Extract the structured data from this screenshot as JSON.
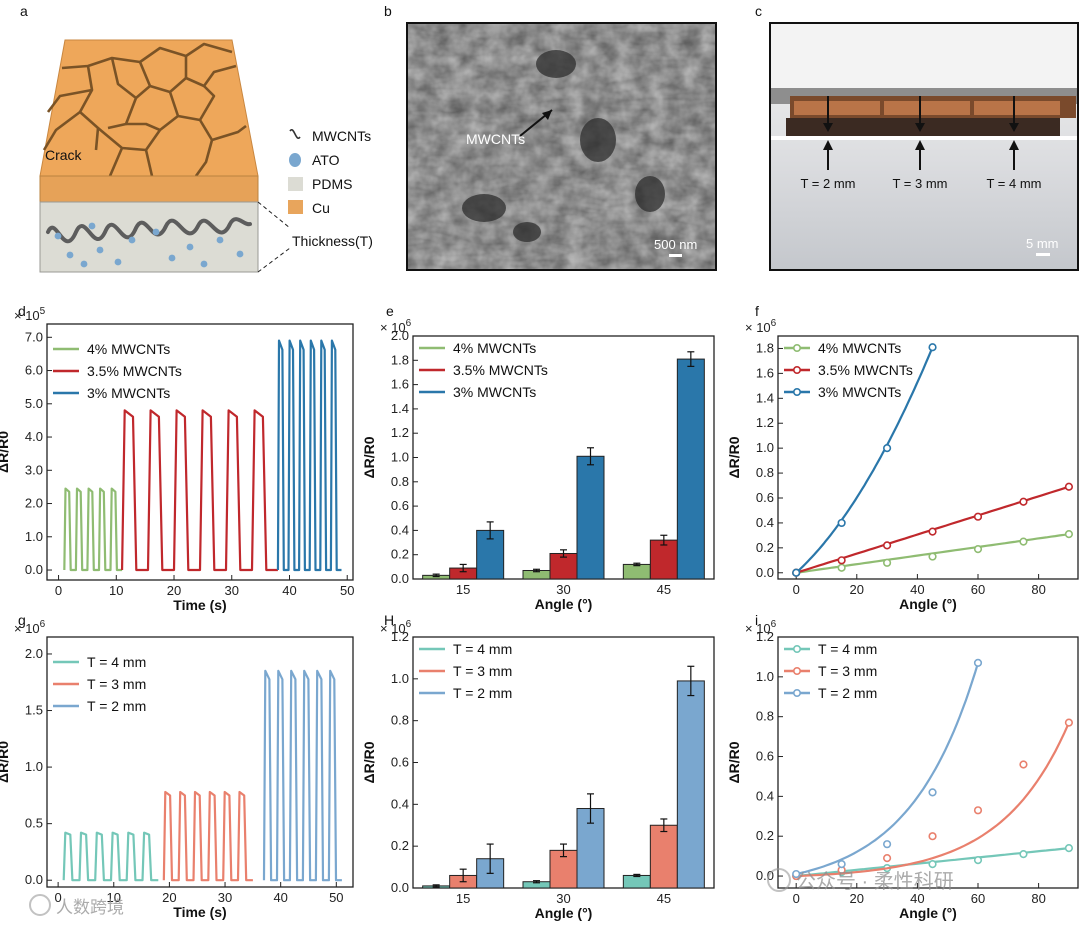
{
  "figure": {
    "panel_letters": {
      "a": "a",
      "b": "b",
      "c": "c",
      "d": "d",
      "e": "e",
      "f": "f",
      "g": "g",
      "H": "H",
      "i": "i"
    },
    "schematic": {
      "crack_label": "Crack",
      "legend": [
        "MWCNTs",
        "ATO",
        "PDMS",
        "Cu"
      ],
      "thickness_label": "Thickness(T)",
      "colors": {
        "cu": "#e8a55c",
        "pdms": "#dcdcd4",
        "ato": "#7aa7cf",
        "crack": "#6b4a1e"
      }
    },
    "sem_image": {
      "annotation": "MWCNTs",
      "scale_bar": "500 nm"
    },
    "photo": {
      "labels": [
        "T = 2 mm",
        "T = 3 mm",
        "T = 4 mm"
      ],
      "scale_bar": "5 mm"
    },
    "watermarks": [
      "公众号 · 柔性科研",
      "人数跨境"
    ]
  },
  "chart_data": [
    {
      "id": "d",
      "type": "line",
      "multiplier": "× 10^5",
      "xlabel": "Time (s)",
      "ylabel": "ΔR/R0",
      "xlim": [
        -2,
        51
      ],
      "ylim": [
        -0.3,
        7.4
      ],
      "xticks": [
        0,
        10,
        20,
        30,
        40,
        50
      ],
      "yticks": [
        "0.0",
        "1.0",
        "2.0",
        "3.0",
        "4.0",
        "5.0",
        "6.0",
        "7.0"
      ],
      "series": [
        {
          "name": "4%    MWCNTs",
          "color": "#8fbc72",
          "t_start": 1,
          "t_end": 11,
          "peak": 2.45,
          "cycles": 5
        },
        {
          "name": "3.5% MWCNTs",
          "color": "#c0282c",
          "t_start": 11,
          "t_end": 38,
          "peak": 4.8,
          "cycles": 6
        },
        {
          "name": "3%    MWCNTs",
          "color": "#2a77aa",
          "t_start": 38,
          "t_end": 49,
          "peak": 6.9,
          "cycles": 6
        }
      ]
    },
    {
      "id": "e",
      "type": "bar",
      "multiplier": "× 10^6",
      "xlabel": "Angle (°)",
      "ylabel": "ΔR/R0",
      "categories": [
        "15",
        "30",
        "45"
      ],
      "ylim": [
        0,
        2.0
      ],
      "yticks": [
        "0.0",
        "0.2",
        "0.4",
        "0.6",
        "0.8",
        "1.0",
        "1.2",
        "1.4",
        "1.6",
        "1.8",
        "2.0"
      ],
      "series": [
        {
          "name": "4%    MWCNTs",
          "color": "#8fbc72",
          "values": [
            0.03,
            0.07,
            0.12
          ],
          "errors": [
            0.01,
            0.01,
            0.01
          ]
        },
        {
          "name": "3.5% MWCNTs",
          "color": "#c0282c",
          "values": [
            0.09,
            0.21,
            0.32
          ],
          "errors": [
            0.03,
            0.03,
            0.04
          ]
        },
        {
          "name": "3%    MWCNTs",
          "color": "#2a77aa",
          "values": [
            0.4,
            1.01,
            1.81
          ],
          "errors": [
            0.07,
            0.07,
            0.06
          ]
        }
      ]
    },
    {
      "id": "f",
      "type": "scatter",
      "multiplier": "× 10^6",
      "xlabel": "Angle (°)",
      "ylabel": "ΔR/R0",
      "xlim": [
        -6,
        93
      ],
      "ylim": [
        -0.05,
        1.9
      ],
      "xticks": [
        0,
        20,
        40,
        60,
        80
      ],
      "yticks": [
        "0.0",
        "0.2",
        "0.4",
        "0.6",
        "0.8",
        "1.0",
        "1.2",
        "1.4",
        "1.6",
        "1.8"
      ],
      "series": [
        {
          "name": "4%    MWCNTs",
          "color": "#8fbc72",
          "x": [
            0,
            15,
            30,
            45,
            60,
            75,
            90
          ],
          "y": [
            0,
            0.04,
            0.08,
            0.13,
            0.19,
            0.25,
            0.31
          ]
        },
        {
          "name": "3.5% MWCNTs",
          "color": "#c0282c",
          "x": [
            0,
            15,
            30,
            45,
            60,
            75,
            90
          ],
          "y": [
            0,
            0.1,
            0.22,
            0.33,
            0.45,
            0.57,
            0.69
          ]
        },
        {
          "name": "3%    MWCNTs",
          "color": "#2a77aa",
          "x": [
            0,
            15,
            30,
            45
          ],
          "y": [
            0,
            0.4,
            1.0,
            1.81
          ]
        }
      ]
    },
    {
      "id": "g",
      "type": "line",
      "multiplier": "× 10^6",
      "xlabel": "Time (s)",
      "ylabel": "ΔR/R0",
      "xlim": [
        -2,
        53
      ],
      "ylim": [
        -0.06,
        2.15
      ],
      "xticks": [
        0,
        10,
        20,
        30,
        40,
        50
      ],
      "yticks": [
        "0.0",
        "0.5",
        "1.0",
        "1.5",
        "2.0"
      ],
      "series": [
        {
          "name": "T = 4 mm",
          "color": "#74c7b8",
          "t_start": 1,
          "t_end": 18,
          "peak": 0.42,
          "cycles": 6
        },
        {
          "name": "T = 3 mm",
          "color": "#e9806d",
          "t_start": 19,
          "t_end": 35,
          "peak": 0.78,
          "cycles": 6
        },
        {
          "name": "T = 2 mm",
          "color": "#7aa7cf",
          "t_start": 37,
          "t_end": 51,
          "peak": 1.85,
          "cycles": 6
        }
      ]
    },
    {
      "id": "H",
      "type": "bar",
      "multiplier": "× 10^6",
      "xlabel": "Angle (°)",
      "ylabel": "ΔR/R0",
      "categories": [
        "15",
        "30",
        "45"
      ],
      "ylim": [
        0,
        1.2
      ],
      "yticks": [
        "0.0",
        "0.2",
        "0.4",
        "0.6",
        "0.8",
        "1.0",
        "1.2"
      ],
      "series": [
        {
          "name": "T = 4 mm",
          "color": "#74c7b8",
          "values": [
            0.01,
            0.03,
            0.06
          ],
          "errors": [
            0.005,
            0.005,
            0.005
          ]
        },
        {
          "name": "T = 3 mm",
          "color": "#e9806d",
          "values": [
            0.06,
            0.18,
            0.3
          ],
          "errors": [
            0.03,
            0.03,
            0.03
          ]
        },
        {
          "name": "T = 2 mm",
          "color": "#7aa7cf",
          "values": [
            0.14,
            0.38,
            0.99
          ],
          "errors": [
            0.07,
            0.07,
            0.07
          ]
        }
      ]
    },
    {
      "id": "i",
      "type": "scatter",
      "multiplier": "× 10^6",
      "xlabel": "Angle (°)",
      "ylabel": "ΔR/R0",
      "xlim": [
        -6,
        93
      ],
      "ylim": [
        -0.06,
        1.2
      ],
      "xticks": [
        0,
        20,
        40,
        60,
        80
      ],
      "yticks": [
        "0.0",
        "0.2",
        "0.4",
        "0.6",
        "0.8",
        "1.0",
        "1.2"
      ],
      "series": [
        {
          "name": "T = 4 mm",
          "color": "#74c7b8",
          "x": [
            0,
            15,
            30,
            45,
            60,
            75,
            90
          ],
          "y": [
            0,
            0.02,
            0.04,
            0.06,
            0.08,
            0.11,
            0.14
          ],
          "curve": "line"
        },
        {
          "name": "T = 3 mm",
          "color": "#e9806d",
          "x": [
            0,
            15,
            30,
            45,
            60,
            75,
            90
          ],
          "y": [
            0,
            0.03,
            0.09,
            0.2,
            0.33,
            0.56,
            0.77
          ],
          "curve": "exp"
        },
        {
          "name": "T = 2 mm",
          "color": "#7aa7cf",
          "x": [
            0,
            15,
            30,
            45,
            60
          ],
          "y": [
            0.01,
            0.06,
            0.16,
            0.42,
            1.07
          ],
          "curve": "exp"
        }
      ]
    }
  ]
}
